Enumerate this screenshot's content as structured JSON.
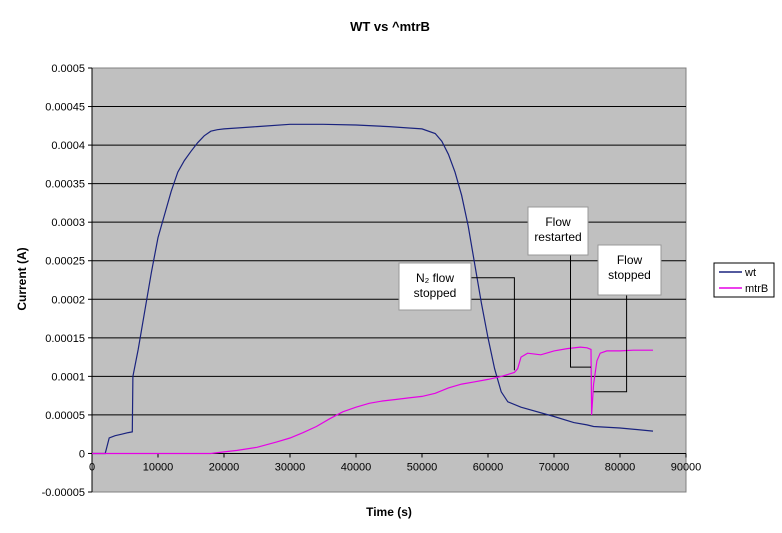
{
  "chart_data": {
    "type": "line",
    "title": "WT vs ^mtrB",
    "xlabel": "Time (s)",
    "ylabel": "Current (A)",
    "xlim": [
      0,
      90000
    ],
    "ylim": [
      -5e-05,
      0.0005
    ],
    "x_ticks": [
      0,
      10000,
      20000,
      30000,
      40000,
      50000,
      60000,
      70000,
      80000,
      90000
    ],
    "x_tick_labels": [
      "0",
      "10000",
      "20000",
      "30000",
      "40000",
      "50000",
      "60000",
      "70000",
      "80000",
      "90000"
    ],
    "y_ticks": [
      -5e-05,
      0,
      5e-05,
      0.0001,
      0.00015,
      0.0002,
      0.00025,
      0.0003,
      0.00035,
      0.0004,
      0.00045,
      0.0005
    ],
    "y_tick_labels": [
      "-0.00005",
      "0",
      "0.00005",
      "0.0001",
      "0.00015",
      "0.0002",
      "0.00025",
      "0.0003",
      "0.00035",
      "0.0004",
      "0.00045",
      "0.0005"
    ],
    "grid": "horizontal",
    "legend": "right",
    "series": [
      {
        "name": "wt",
        "color": "#1a237e",
        "points": [
          [
            0,
            0
          ],
          [
            2000,
            0
          ],
          [
            2600,
            2e-05
          ],
          [
            3500,
            2.3e-05
          ],
          [
            4500,
            2.5e-05
          ],
          [
            5500,
            2.7e-05
          ],
          [
            6100,
            2.8e-05
          ],
          [
            6200,
            0.0001
          ],
          [
            7000,
            0.000135
          ],
          [
            8000,
            0.000185
          ],
          [
            9000,
            0.000235
          ],
          [
            10000,
            0.00028
          ],
          [
            11000,
            0.00031
          ],
          [
            12000,
            0.00034
          ],
          [
            13000,
            0.000365
          ],
          [
            14000,
            0.00038
          ],
          [
            15000,
            0.000392
          ],
          [
            16000,
            0.000403
          ],
          [
            17000,
            0.000412
          ],
          [
            18000,
            0.000418
          ],
          [
            19000,
            0.00042
          ],
          [
            20000,
            0.000421
          ],
          [
            25000,
            0.000424
          ],
          [
            30000,
            0.000427
          ],
          [
            35000,
            0.000427
          ],
          [
            40000,
            0.000426
          ],
          [
            45000,
            0.000424
          ],
          [
            50000,
            0.000421
          ],
          [
            52000,
            0.000415
          ],
          [
            53000,
            0.000405
          ],
          [
            54000,
            0.000388
          ],
          [
            55000,
            0.000365
          ],
          [
            56000,
            0.000335
          ],
          [
            57000,
            0.000295
          ],
          [
            58000,
            0.000245
          ],
          [
            59000,
            0.000195
          ],
          [
            60000,
            0.00015
          ],
          [
            61000,
            0.00011
          ],
          [
            62000,
            8e-05
          ],
          [
            63000,
            6.7e-05
          ],
          [
            65000,
            6e-05
          ],
          [
            70000,
            4.8e-05
          ],
          [
            73000,
            4e-05
          ],
          [
            75000,
            3.7e-05
          ],
          [
            76000,
            3.5e-05
          ],
          [
            80000,
            3.3e-05
          ],
          [
            85000,
            2.9e-05
          ]
        ]
      },
      {
        "name": "mtrB",
        "color": "#e600e6",
        "points": [
          [
            0,
            0
          ],
          [
            18000,
            0
          ],
          [
            20000,
            2e-06
          ],
          [
            22000,
            4e-06
          ],
          [
            25000,
            8e-06
          ],
          [
            28000,
            1.5e-05
          ],
          [
            30000,
            2e-05
          ],
          [
            32000,
            2.7e-05
          ],
          [
            34000,
            3.5e-05
          ],
          [
            36000,
            4.5e-05
          ],
          [
            38000,
            5.4e-05
          ],
          [
            40000,
            6e-05
          ],
          [
            42000,
            6.5e-05
          ],
          [
            44000,
            6.8e-05
          ],
          [
            46000,
            7e-05
          ],
          [
            48000,
            7.2e-05
          ],
          [
            50000,
            7.4e-05
          ],
          [
            52000,
            7.8e-05
          ],
          [
            54000,
            8.5e-05
          ],
          [
            56000,
            9e-05
          ],
          [
            58000,
            9.3e-05
          ],
          [
            60000,
            9.6e-05
          ],
          [
            62000,
            0.0001
          ],
          [
            64000,
            0.000105
          ],
          [
            64500,
            0.00011
          ],
          [
            65000,
            0.000125
          ],
          [
            66000,
            0.00013
          ],
          [
            68000,
            0.000128
          ],
          [
            70000,
            0.000133
          ],
          [
            72000,
            0.000136
          ],
          [
            74000,
            0.000138
          ],
          [
            75000,
            0.000137
          ],
          [
            75600,
            0.000135
          ],
          [
            75700,
            5e-05
          ],
          [
            76000,
            9e-05
          ],
          [
            76500,
            0.00012
          ],
          [
            77000,
            0.00013
          ],
          [
            78000,
            0.000133
          ],
          [
            80000,
            0.000133
          ],
          [
            82000,
            0.000134
          ],
          [
            85000,
            0.000134
          ]
        ]
      }
    ],
    "annotations": [
      {
        "lines": [
          "N₂ flow",
          "stopped"
        ],
        "pointer": [
          [
            57500,
            0.000228
          ],
          [
            64000,
            0.000228
          ],
          [
            64000,
            0.000108
          ]
        ]
      },
      {
        "lines": [
          "Flow",
          "restarted"
        ],
        "pointer": [
          [
            72500,
            0.00026
          ],
          [
            72500,
            0.000112
          ],
          [
            75600,
            0.000112
          ]
        ]
      },
      {
        "lines": [
          "Flow",
          "stopped"
        ],
        "pointer": [
          [
            81000,
            0.00023
          ],
          [
            81000,
            8e-05
          ],
          [
            76000,
            8e-05
          ]
        ]
      }
    ]
  }
}
